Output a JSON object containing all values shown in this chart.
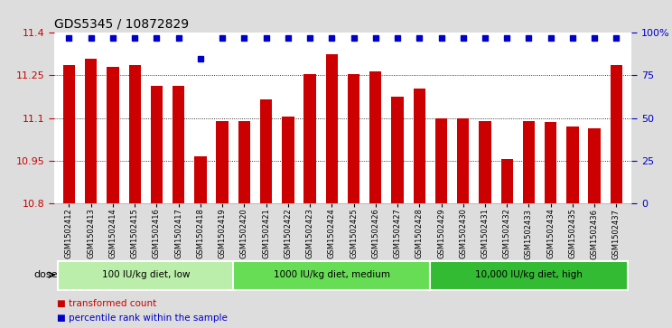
{
  "title": "GDS5345 / 10872829",
  "samples": [
    "GSM1502412",
    "GSM1502413",
    "GSM1502414",
    "GSM1502415",
    "GSM1502416",
    "GSM1502417",
    "GSM1502418",
    "GSM1502419",
    "GSM1502420",
    "GSM1502421",
    "GSM1502422",
    "GSM1502423",
    "GSM1502424",
    "GSM1502425",
    "GSM1502426",
    "GSM1502427",
    "GSM1502428",
    "GSM1502429",
    "GSM1502430",
    "GSM1502431",
    "GSM1502432",
    "GSM1502433",
    "GSM1502434",
    "GSM1502435",
    "GSM1502436",
    "GSM1502437"
  ],
  "bar_values": [
    11.285,
    11.31,
    11.28,
    11.285,
    11.215,
    11.215,
    10.965,
    11.09,
    11.09,
    11.165,
    11.105,
    11.255,
    11.325,
    11.255,
    11.265,
    11.175,
    11.205,
    11.1,
    11.1,
    11.09,
    10.955,
    11.09,
    11.085,
    11.07,
    11.065,
    11.285
  ],
  "percentile_values": [
    97,
    97,
    97,
    97,
    97,
    97,
    85,
    97,
    97,
    97,
    97,
    97,
    97,
    97,
    97,
    97,
    97,
    97,
    97,
    97,
    97,
    97,
    97,
    97,
    97,
    97
  ],
  "bar_color": "#cc0000",
  "percentile_color": "#0000cc",
  "ylim_left": [
    10.8,
    11.4
  ],
  "ylim_right": [
    0,
    100
  ],
  "yticks_left": [
    10.8,
    10.95,
    11.1,
    11.25,
    11.4
  ],
  "yticks_right": [
    0,
    25,
    50,
    75,
    100
  ],
  "ytick_labels_right": [
    "0",
    "25",
    "50",
    "75",
    "100%"
  ],
  "groups": [
    {
      "label": "100 IU/kg diet, low",
      "start": 0,
      "end": 8
    },
    {
      "label": "1000 IU/kg diet, medium",
      "start": 8,
      "end": 17
    },
    {
      "label": "10,000 IU/kg diet, high",
      "start": 17,
      "end": 26
    }
  ],
  "group_colors": [
    "#bbeeaa",
    "#66dd55",
    "#33bb33"
  ],
  "dose_label": "dose",
  "legend_items": [
    {
      "label": "transformed count",
      "color": "#cc0000"
    },
    {
      "label": "percentile rank within the sample",
      "color": "#0000cc"
    }
  ],
  "bar_width": 0.55,
  "background_color": "#dddddd",
  "plot_bg_color": "#ffffff",
  "title_fontsize": 10,
  "axis_fontsize": 8,
  "tick_label_fontsize": 6
}
